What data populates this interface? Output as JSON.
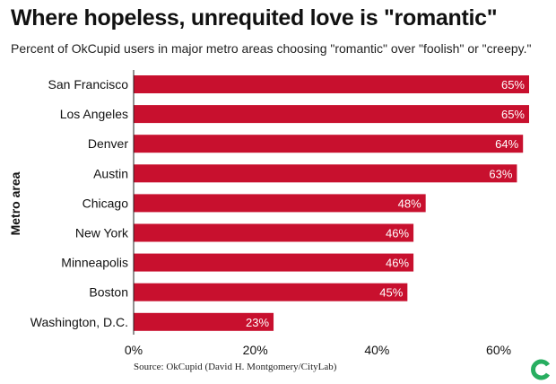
{
  "header": {
    "title": "Where hopeless, unrequited love is \"romantic\"",
    "subtitle": "Percent of OkCupid users in major metro areas choosing \"romantic\" over \"foolish\" or \"creepy.\""
  },
  "source": "Source: OkCupid (David H. Montgomery/CityLab)",
  "logo": {
    "icon": "citylab-logo-icon",
    "color": "#27ae60"
  },
  "chart_data": {
    "type": "bar",
    "orientation": "horizontal",
    "title": "Where hopeless, unrequited love is \"romantic\"",
    "subtitle": "Percent of OkCupid users in major metro areas choosing \"romantic\" over \"foolish\" or \"creepy.\"",
    "ylabel": "Metro area",
    "xlabel": "",
    "categories": [
      "San Francisco",
      "Los Angeles",
      "Denver",
      "Austin",
      "Chicago",
      "New York",
      "Minneapolis",
      "Boston",
      "Washington, D.C."
    ],
    "values": [
      65,
      65,
      64,
      63,
      48,
      46,
      46,
      45,
      23
    ],
    "data_labels": [
      "65%",
      "65%",
      "64%",
      "63%",
      "48%",
      "46%",
      "46%",
      "45%",
      "23%"
    ],
    "xlim": [
      0,
      65
    ],
    "xticks": [
      0,
      20,
      40,
      60
    ],
    "xtick_labels": [
      "0%",
      "20%",
      "40%",
      "60%"
    ],
    "grid": false,
    "bar_color": "#c8102e"
  }
}
